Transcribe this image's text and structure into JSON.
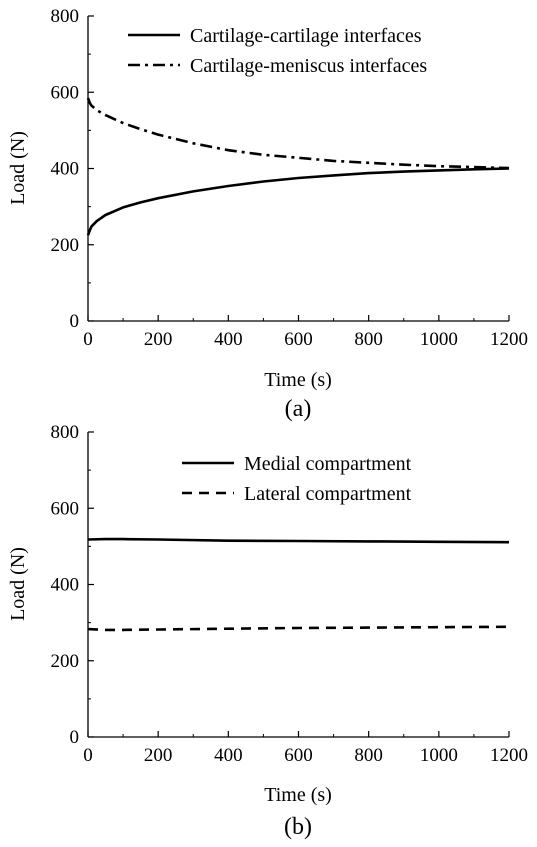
{
  "chart_data": [
    {
      "type": "line",
      "panel_label": "(a)",
      "xlabel": "Time (s)",
      "ylabel": "Load (N)",
      "xlim": [
        0,
        1200
      ],
      "ylim": [
        0,
        800
      ],
      "xticks": [
        0,
        200,
        400,
        600,
        800,
        1000,
        1200
      ],
      "yticks": [
        0,
        200,
        400,
        600,
        800
      ],
      "grid": false,
      "legend_position": "top-right",
      "series": [
        {
          "name": "Cartilage-cartilage interfaces",
          "style": "solid",
          "x": [
            0,
            5,
            10,
            25,
            50,
            100,
            150,
            200,
            300,
            400,
            500,
            600,
            700,
            800,
            900,
            1000,
            1100,
            1200
          ],
          "y": [
            225,
            238,
            248,
            262,
            278,
            298,
            311,
            322,
            340,
            354,
            366,
            375,
            382,
            388,
            392,
            395,
            398,
            400
          ]
        },
        {
          "name": "Cartilage-meniscus interfaces",
          "style": "dashdot",
          "x": [
            0,
            5,
            10,
            25,
            50,
            100,
            150,
            200,
            300,
            400,
            500,
            600,
            700,
            800,
            900,
            1000,
            1100,
            1200
          ],
          "y": [
            585,
            572,
            565,
            553,
            540,
            519,
            503,
            489,
            466,
            448,
            436,
            428,
            420,
            415,
            410,
            406,
            404,
            401
          ]
        }
      ]
    },
    {
      "type": "line",
      "panel_label": "(b)",
      "xlabel": "Time (s)",
      "ylabel": "Load (N)",
      "xlim": [
        0,
        1200
      ],
      "ylim": [
        0,
        800
      ],
      "xticks": [
        0,
        200,
        400,
        600,
        800,
        1000,
        1200
      ],
      "yticks": [
        0,
        200,
        400,
        600,
        800
      ],
      "grid": false,
      "legend_position": "top-right",
      "series": [
        {
          "name": "Medial compartment",
          "style": "solid",
          "x": [
            0,
            50,
            100,
            200,
            400,
            600,
            800,
            1000,
            1200
          ],
          "y": [
            518,
            519,
            519,
            518,
            515,
            514,
            513,
            512,
            511
          ]
        },
        {
          "name": "Lateral compartment",
          "style": "dashed",
          "x": [
            0,
            50,
            100,
            200,
            400,
            600,
            800,
            1000,
            1200
          ],
          "y": [
            283,
            281,
            281,
            282,
            284,
            286,
            287,
            288,
            289
          ]
        }
      ]
    }
  ]
}
